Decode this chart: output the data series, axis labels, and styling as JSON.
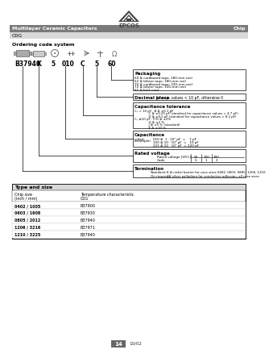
{
  "title_text": "Multilayer Ceramic Capacitors",
  "chip_text": "Chip",
  "cog_text": "C0G",
  "header_bg": "#7a7a7a",
  "ordering_title": "Ordering code system",
  "code_parts": [
    "B37940",
    "K",
    "5",
    "010",
    "C",
    "5",
    "60"
  ],
  "packaging_title": "Packaging",
  "packaging_lines": [
    "60 ≅ cardboard tape, 180-mm reel",
    "62 ≅ blister tape, 180-mm reel",
    "70 ≅ cardboard tape, 330-mm reel",
    "72 ≅ blister tape, 330-mm reel",
    "61 ≅ bulk case"
  ],
  "decimal_title": "Decimal place",
  "decimal_text": " for cap. values < 10 pF, otherwise 0",
  "cap_tol_title": "Capacitance tolerance",
  "cap_tol_lines_a": [
    "C₀ < 10 pF:  B ≅ ±0.1 pF",
    "              C ≅ ±0.25 pF (standard for capacitance values < 4.7 pF)",
    "              D ≅ ±0.5 pF (standard for capacitance values > 8.2 pF)"
  ],
  "cap_tol_lines_b": [
    "C₀ ≥10 pF:  F/G ≅ ±2%",
    "              G ≅ ±2 %",
    "              J ≅ ±5 % (standard)",
    "              K ≅ ±10 %"
  ],
  "capacitance_title": "Capacitance",
  "capacitance_coded": "coded:",
  "capacitance_example": "(example)",
  "capacitance_lines": [
    "010 ≅  1 · 10⁰ pF  =    1 pF",
    "100 ≅ 10 · 10⁰ pF  =   10 pF",
    "221 ≅ 22 · 10¹ pF  = 220 pF"
  ],
  "rated_title": "Rated voltage",
  "rated_vdc_label": "Rated voltage [VDC]",
  "rated_values": [
    "50",
    "100",
    "200"
  ],
  "rated_codes": [
    "5",
    "1",
    "2"
  ],
  "termination_title": "Termination",
  "term_std_label": "Standard:",
  "term_std_text": "K ≅ nickel barrier for case sizes 0402, 0603, 0805, 1206, 1210",
  "term_req_label": "On request:",
  "term_req_text": "J ≅ silver palladium for conductive adhesion, all case sizes",
  "table_title": "Type and size",
  "table_col1_h1": "Chip size",
  "table_col1_h2": "(inch / mm)",
  "table_col2_h1": "Temperature characteristic",
  "table_col2_h2": "C0G",
  "table_rows": [
    [
      "0402 / 1005",
      "B37900"
    ],
    [
      "0603 / 1608",
      "B37930"
    ],
    [
      "0805 / 2012",
      "B37940"
    ],
    [
      "1206 / 3216",
      "B37971"
    ],
    [
      "1210 / 3225",
      "B37940"
    ]
  ],
  "page_num": "14",
  "page_date": "10/02",
  "bg_color": "#ffffff"
}
